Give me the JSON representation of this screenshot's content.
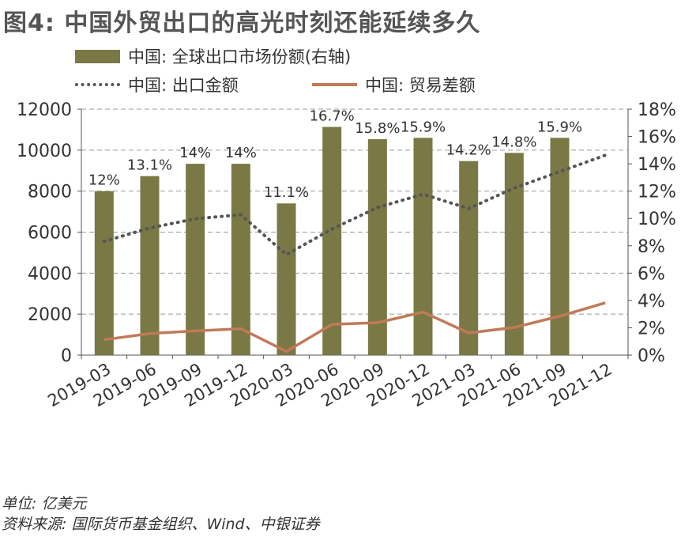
{
  "title": "图4: 中国外贸出口的高光时刻还能延续多久",
  "colors": {
    "bar": "#7a7845",
    "dotted": "#555555",
    "trade": "#c07a58",
    "grid": "#9a9a9a"
  },
  "legend": {
    "share_label": "中国: 全球出口市场份额(右轴)",
    "exports_label": "中国: 出口金额",
    "balance_label": "中国: 贸易差额"
  },
  "notes": {
    "unit": "单位: 亿美元",
    "source": "资料来源: 国际货币基金组织、Wind、中银证券"
  },
  "chart_data": {
    "type": "bar",
    "title": "图4: 中国外贸出口的高光时刻还能延续多久",
    "categories": [
      "2019-03",
      "2019-06",
      "2019-09",
      "2019-12",
      "2020-03",
      "2020-06",
      "2020-09",
      "2020-12",
      "2021-03",
      "2021-06",
      "2021-09",
      "2021-12"
    ],
    "left_ticks": [
      "0",
      "2000",
      "4000",
      "6000",
      "8000",
      "10000",
      "12000"
    ],
    "right_ticks": [
      "0%",
      "2%",
      "4%",
      "6%",
      "8%",
      "10%",
      "12%",
      "14%",
      "16%",
      "18%"
    ],
    "ylim_left": [
      0,
      12000
    ],
    "ylim_right": [
      0,
      18
    ],
    "bars": {
      "name": "中国: 全球出口市场份额(右轴)",
      "axis": "right",
      "values": [
        12,
        13.1,
        14,
        14,
        11.1,
        16.7,
        15.8,
        15.9,
        14.2,
        14.8,
        15.9,
        null
      ],
      "labels": [
        "12%",
        "13.1%",
        "14%",
        "14%",
        "11.1%",
        "16.7%",
        "15.8%",
        "15.9%",
        "14.2%",
        "14.8%",
        "15.9%",
        ""
      ]
    },
    "series": [
      {
        "name": "中国: 出口金额",
        "axis": "left",
        "style": "dotted",
        "values": [
          5550,
          6200,
          6650,
          6850,
          4900,
          6150,
          7200,
          7850,
          7150,
          8150,
          8950,
          9750
        ]
      },
      {
        "name": "中国: 贸易差额",
        "axis": "left",
        "style": "solid",
        "values": [
          750,
          1050,
          1180,
          1290,
          180,
          1500,
          1580,
          2100,
          1080,
          1350,
          1900,
          2550
        ]
      }
    ]
  }
}
